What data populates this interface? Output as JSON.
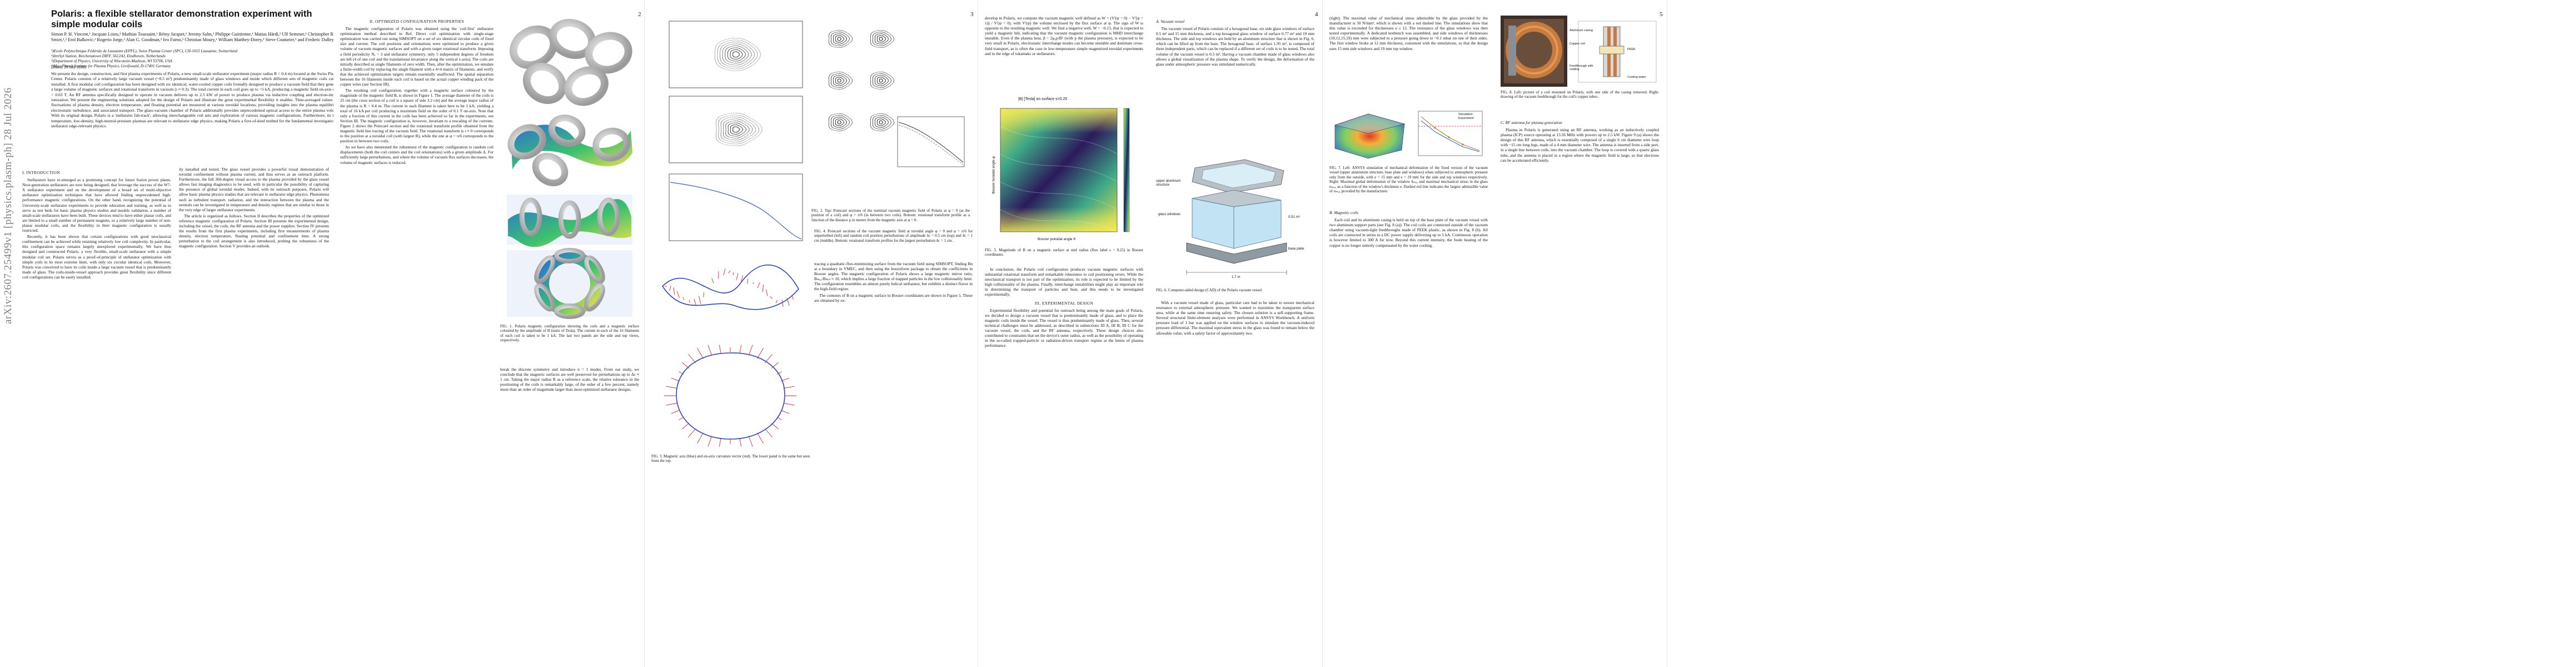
{
  "arxiv_stamp": "arXiv:2607.25499v1  [physics.plasm-ph]  28 Jul 2026",
  "page_numbers": [
    "2",
    "3",
    "4",
    "5"
  ],
  "paper": {
    "title": "Polaris: a flexible stellarator demonstration experiment with simple modular coils",
    "authors": "Simon P. H. Vincent,¹ Jocquan Loizu,¹ Mathias Toussaint,¹ Rémy Jacquet,¹ Jeremy Salm,¹ Philippe Guittienne,¹ Matias Härdi,¹ Ulf Semmer,¹ Christopher R. Smiet,¹,² Erol Balkovic,¹ Rogerio Jorge,³ Alan G. Goodman,¹ Ivo Furno,¹ Christian Moury,¹ William Matthey-Dorey,¹ Steve Couturier,¹ and Frederic Dalley¹",
    "affiliations": "¹)Ecole Polytechnique Fédérale de Lausanne (EPFL), Swiss Plasma Center (SPC), CH-1015 Lausanne, Switzerland\n²)ItreSyl Station, Reichenatown DIFF, 5612AJ, Eindhoven, Netherlands\n³)Department of Physics, University of Wisconsin-Madison, WI 53706, USA\n⁴)Max Planck Institute for Plasma Physics, Greifswald, D-17491 Germany",
    "date": "(Dated: 29 July 2026)",
    "abstract": "We present the design, construction, and first plasma experiments of Polaris, a new small-scale stellarator experiment (major radius R = 0.4 m) located at the Swiss Plasma Center. Polaris consists of a relatively large vacuum vessel (~0.5 m³) predominantly made of glass windows and inside which different sets of magnetic coils can be installed. A first modular coil configuration has been designed with six identical, water-cooled copper coils fromally designed to produce a vacuum field that they generate a large volume of magnetic surfaces and rotational transform in vacuum (ι ≈ 0.3). The total current in each coil goes up to ~5 kA, producing a magnetic field on-axis of B = 0.03 T. An RF antenna specifically designed to operate in vacuum delivers up to 2.5 kW of power to produce plasma via inductive coupling and electron-impact ionization. We present the engineering solutions adopted for the design of Polaris and illustrate the great experimental flexibility it enables. Time-averaged values and fluctuations of plasma density, electron temperature, and floating potential are measured at various toroidal locations, providing insights into the plasma equilibrium, electrostatic turbulence, and associated transport. The glass-vacuum chamber of Polaris additionally provides unprecedented optical access to the entire plasma volume. With its original design, Polaris is a 'stellarator fab-track', allowing interchangeable coil sets and exploration of various magnetic configurations. Furthermore, its low-temperature, low-density, high-neutral-pressure plasmas are relevant to stellarator edge physics, making Polaris a first-of-kind testbed for the fundamental investigation of stellarator edge-relevant physics."
  },
  "sections": {
    "intro": "I.  INTRODUCTION",
    "optimized": "II.  OPTIMIZED CONFIGURATION PROPERTIES",
    "experimental": "III.  EXPERIMENTAL DESIGN",
    "vacuum_vessel": "A.  Vacuum vessel",
    "magnetic_coils": "B.  Magnetic coils",
    "rf_antenna": "C.  RF antenna for plasma generation"
  },
  "text": {
    "p1_col1": [
      "Stellarators have re-emerged as a promising concept for future fusion power plants. Next-generation stellarators are now being designed, that leverage the success of the W7-X stellarator experiment and on the development of a broad set of multi-objective stellarator optimization techniques that have allowed finding unprecedented high-performance magnetic configurations. On the other hand, recognizing the potential of University-scale stellarator experiments to provide education and training, as well as to serve as test beds for basic plasma physics studies and models validation, a number of small-scale stellarators have been built. These devices tend to have either planar coils, and are limited to a small number of permanent magnets, or a relatively large number of non-planar modular coils, and the flexibility in their magnetic configuration is usually restricted.",
      "Recently, it has been shown that certain configurations with good neoclassical confinement can be achieved while retaining relatively low coil complexity. In particular, this configuration space remains largely unexplored experimentally. We have thus designed and constructed Polaris, a very flexible, small-scale stellarator with a simple modular coil set. Polaris serves as a proof-of-principle of stellarator optimization with simple coils in its most extreme limit, with only six circular identical coils. Moreover, Polaris was conceived to have its coils inside a large vacuum vessel that is predominantly made of glass. The coils-inside-vessel approach provides great flexibility since different coil configurations can be easily installed."
    ],
    "p1_col2": [
      "ily installed and tested. The glass vessel provides a powerful visual demonstration of toroidal confinement without plasma current, and thus serves as an outreach platform. Furthermore, the full 360-degree visual access to the plasma provided by the glass vessel allows fast imaging diagnostics to be used, with in particular the possibility of capturing the presence of global toroidal modes. Indeed, with its outreach purposes, Polaris will allow basic plasma physics studies that are relevant to stellarator edge physics. Phenomena such as turbulent transport, radiation, and the interaction between the plasma and the neutrals can be investigated in temperature and density regimes that are similar to those in the very edge of larger stellarator experiments.",
      "The article is organized as follows. Section II describes the properties of the optimized reference magnetic configuration of Polaris. Section III presents the experimental design, including the vessel, the coils, the RF antenna and the power supplies. Section IV presents the results from the first plasma experiments, including first measurements of plasma density, electron temperature, floating potential and confinement time. A strong perturbation to the coil arrangement is also introduced, probing the robustness of the magnetic configuration. Section V provides an outlook."
    ],
    "p2_col1": [
      "The magnetic configuration of Polaris was obtained using the 'coil-first' stellarator optimization method described in Ref. Direct coil optimization with single-stage optimization was carried out using SIMSOPT on a set of six identical circular coils of fixed size and current. The coil positions and orientations were optimized to produce a given volume of vacuum magnetic surfaces and with a given target rotational transform. Imposing a field periodicity Nₑ = 3 and stellarator symmetry, only 5 independent degrees of freedom are left (4 of one coil and the translational invariance along the vertical z-axis). The coils are initially described as single filaments of zero width. Then, after the optimization, we emulate a finite-width coil by replacing the single filament with a 4×4 matrix of filaments, and verify that the achieved optimization targets remain essentially unaffected. The spatial separation between the 16 filaments inside each coil is based on the actual copper winding pack of the copper wires (see Section III).",
      "The resulting coil configuration, together with a magnetic surface coloured by the magnitude of the magnetic field B, is shown in Figure 1. The average diameter of the coils is 25 cm (the cross section of a coil is a square of side 3.2 cm) and the average major radius of the plasma is R = 0.4 m. The current in each filament is taken here to be 1 kA, yielding a total of 16 kA per coil producing a maximum field on the order of 0.1 T on-axis. Note that only a fraction of this current in the coils has been achieved so far in the experiments, see Section III. The magnetic configuration is, however, invariant to a rescaling of the currents. Figure 2 shows the Poincaré section and the rotational transform profile obtained from the magnetic field line tracing of the vacuum field. The rotational transform is ι ≈ 0 corresponds to the position at a toroidal coil (with largest B), while the one at φ = π/6 corresponds to the position in between two coils.",
      "As we have also mentioned the robustness of the magnetic configuration to random coil displacements (both the coil centers and the coil orientations) with a given amplitude Δ. For sufficiently large perturbations, and where the volume of vacuum flux surfaces decreases, the volume of magnetic surfaces is reduced."
    ],
    "p2_col2": [
      "break the discrete symmetry and introduce n = 1 modes. From our study, we conclude that the magnetic surfaces are well preserved for perturbations up to Δc ≈ 1 cm. Taking the major radius R as a reference scale, the relative tolerance in the positioning of the coils is remarkably large, of the order of a few percent, namely more than an order of magnitude larger than most-optimized stellarator designs."
    ],
    "p3_col1": [
      "tracing a quadratic-flux-minimizing surface from the vacuum field using SIMSOPT, finding Bn at a boundary in VMEC, and then using the boozxform package to obtain the coefficients in Boozer angles. The magnetic configuration of Polaris shows a large magnetic mirror ratio, Bₘₐₓ/Bₘᵢₙ ≈ 10, which implies a large fraction of trapped particles in the low collisionality limit. The configuration resembles an almost purely helical stellarator, but exhibits a distinct flavor in the high-field region.",
      "The contours of B on a magnetic surface in Boozer coordinates are shown in Figure 5. These are obtained by ex-"
    ],
    "p3_col2": [
      "develop in Polaris, we compute the vacuum magnetic well defined as W = (V'(ψ = 0) − V'(ψ = 1)) / V'(ψ = 0), with V'(ψ) the volume enclosed by the flux surface at ψ. The sign of W is opposite to the resulting magnetic well. We find a negative well, W = −0.13, that is expected to yield a magnetic hill, indicating that the vacuum magnetic configuration is MHD interchange unstable. Even if the plasma beta, β = 2μ₀p/B² (with p the plasma pressure), is expected to be very small in Polaris, electrostatic interchange modes can become unstable and dominate cross-field transport, as is often the case in low-temperature simple magnetized toroidal experiments and in the edge of tokamaks or stellarators.",
      "In conclusion, the Polaris coil configuration produces vacuum magnetic surfaces with substantial rotational transform and remarkable robustness to coil positioning errors. While the neoclassical transport is not part of the optimization, its role is expected to be limited by the high collisionality of the plasma. Finally, interchange instabilities might play an important role in determining the transport of particles and heat, and this needs to be investigated experimentally.",
      "Experimental flexibility and potential for outreach being among the main goals of Polaris, we decided to design a vacuum vessel that is predominantly made of glass, and to place the magnetic coils inside the vessel. The vessel is thus predominantly made of glass. Then, several technical challenges must be addressed, as described in subsections III A, III B, III C for the vacuum vessel, the coils, and the RF antenna, respectively. These design choices also contributed to constraints that set the device's outer radius, as well as the possibility of operating in the so-called trapped-particle or radiation-driven transport regime at the limits of plasma performance."
    ],
    "p4_col1": [
      "The vacuum vessel of Polaris consists of a hexagonal base, six side glass windows of surface 0.5 m² and 15 mm thickness, and a top hexagonal glass window of surface 0.77 m² and 19 mm thickness. The side and top windows are held by an aluminum structure that is shown in Fig. 6, which can be lifted up from the base. The hexagonal base, of surface 1.95 m², is composed of three independent parts, which can be replaced if a different set of coils is to be tested. The total volume of the vacuum vessel is 0.5 m³. Having a vacuum chamber made of glass windows also allows a global visualization of the plasma shape. To verify the design, the deformation of the glass under atmospheric pressure was simulated numerically.",
      "With a vacuum vessel made of glass, particular care had to be taken to ensure mechanical resistance to external atmospheric pressure. We wanted to maximize the transparent surface area, while at the same time ensuring safety. The chosen solution is a self-supporting frame. Several structural finite-element analyses were performed in ANSYS Workbench. A uniform pressure load of 1 bar was applied on the window surfaces to simulate the vacuum-induced pressure differential. The maximal equivalent stress in the glass was found to remain below the allowable value, with a safety factor of approximately two."
    ],
    "p4_col2": [
      "(right). The maximal value of mechanical stress admissible by the glass provided by the manufacturer is 50 N/mm², which is shown with a red dashed line. The simulations show that this value is exceeded for thicknesses e ≤ 12. The resistance of the glass windows was then tested experimentally. A dedicated testbench was assembled, and side windows of thicknesses (10,12,15,19) mm were subjected to a pressure going down to ~0.1 mbar on one of their sides. The first window broke at 12 mm thickness, consistent with the simulations, so that the design uses 15 mm side windows and 19 mm top window.",
      "Each coil and its aluminum casing is held on top of the base plate of the vacuum vessel with two aluminum support parts (see Fig. 8 (a)). The coil coils are connected outside of the vacuum chamber using vacuum-tight feedthroughs made of PEEK plastic, as shown in Fig. 8 (b). All coils are connected in series to a DC power supply delivering up to 5 kA. Continuous operation is however limited to 300 A for now. Beyond this current intensity, the Joule heating of the copper is no longer entirely compensated by the water cooling.",
      "Plasma in Polaris is generated using an RF antenna, working as an inductively coupled plasma (ICP) source operating at 13.56 MHz with powers up to 2.5 kW. Figure 9 (a) shows the design of this RF antenna, which is essentially composed of a single 6 cm diameter wire loop with ~15 cm long legs, made of a 4 mm diameter wire. The antenna is inserted from a side port, in a single line between coils, into the vacuum chamber. The loop is covered with a quartz glass tube, and the antenna is placed in a region where the magnetic field is large, so that electrons can be accelerated efficiently."
    ]
  },
  "captions": {
    "fig1": "FIG. 1. Polaris magnetic configuration showing the coils and a magnetic surface coloured by the amplitude of B (units of Tesla). The current in each of the 16 filaments of each coil is taken to be 1 kA. The last two panels are the side and top views, respectively.",
    "fig2": "FIG. 2. Top: Poincaré sections of the nominal vacuum magnetic field of Polaris at φ = 0 (at the position of a coil) and φ = π/6 (in between two coils). Bottom: rotational transform profile as a function of the distance ρ in meters from the magnetic axis at φ = 0.",
    "fig3": "FIG. 3. Magnetic axis (blue) and on-axis curvature vector (red). The lower panel is the same but seen from the top.",
    "fig4": "FIG. 4. Poincaré sections of the vacuum magnetic field at toroidal angle φ = 0 and φ = π/6 for unperturbed (left) and random coil position perturbations of amplitude δc = 0.5 cm (top) and δc = 1 cm (middle). Bottom: rotational transform profiles for the largest perturbation δc = 1 cm.",
    "fig5": "FIG. 5. Magnitude of B on a magnetic surface at mid radius (flux label s = 0.25) in Boozer coordinates.",
    "fig6": "FIG. 6. Computer-aided design (CAD) of the Polaris vacuum vessel.",
    "fig7": "FIG. 7. Left: ANSYS simulation of mechanical deformation of the fixed version of the vacuum vessel (upper aluminium structure, base plate and windows) when subjected to atmospheric pressure only from the outside, with e = 15 mm and e = 19 mm for the side and top windows respectively. Right: Maximal global deformation of the window δₘₐₓ and maximal mechanical stress in the glass σₘₐₓ as a function of the window's thickness e. Dashed red line indicates the largest admissible value of σₘₐₓ provided by the manufacturer.",
    "fig8": "FIG. 8. Left: picture of a coil mounted on Polaris, with one side of the casing removed. Right: drawing of the vacuum feedthrough for the coil's copper tubes."
  },
  "figure_labels": {
    "fig5_title": "|B| [Tesla] on surface s=0.25",
    "fig5_ylabel": "Boozer toroidal angle φ",
    "fig5_xlabel": "Boozer poloidal angle θ",
    "fig6_top": "upper aluminum structure",
    "fig6_glass": "glass windows",
    "fig6_base": "base plate",
    "fig6_vol": "0.51 m³",
    "fig6_dim": "1.7 m",
    "fig7_legend_a": "Simulation",
    "fig7_legend_b": "Experiment",
    "fig8_labels": [
      "Aluminum casing",
      "Copper coil",
      "PEEK",
      "Feedthrough with cooling",
      "Cooling water"
    ]
  },
  "colors": {
    "coil_grey": "#cfcfcf",
    "surface_blue": "#2b6fd6",
    "surface_green": "#3cc06e",
    "surface_yellow": "#f3e24a",
    "axis_blue": "#2a45c9",
    "curvature_red": "#d8262a",
    "heatmap_dark": "#2b1a5c",
    "heatmap_light": "#e8e34a"
  }
}
